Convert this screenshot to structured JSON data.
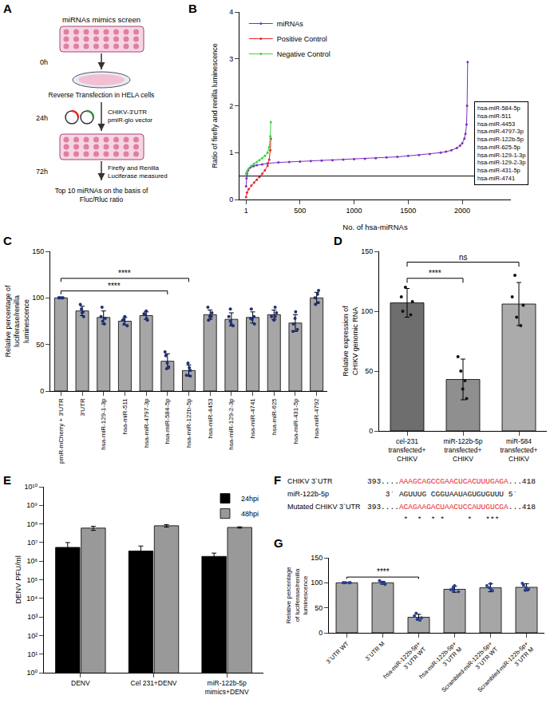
{
  "diagram": {
    "panel": "A",
    "title": "miRNAs mimics screen",
    "steps": [
      {
        "time": "0h",
        "label": "Reverse Transfection in HELA cells"
      },
      {
        "time": "24h",
        "label": "CHIKV-3'UTR pmiR-glo vector"
      },
      {
        "time": "72h",
        "label": "Firefly and Renilla Luciferase measured"
      }
    ],
    "result": "Top 10 miRNAs on the basis of Fluc/Rluc ratio"
  },
  "chart_data": [
    {
      "panel": "B",
      "type": "scatter",
      "x_label": "No. of hsa-miRNAs",
      "y_label": "Ratio of firefly and renilla luminescence",
      "series": [
        {
          "name": "miRNAs",
          "color": "#7b2fbf",
          "x": [
            1,
            5,
            10,
            20,
            40,
            70,
            100,
            150,
            200,
            300,
            400,
            500,
            600,
            700,
            800,
            900,
            1000,
            1100,
            1200,
            1300,
            1400,
            1500,
            1600,
            1700,
            1800,
            1850,
            1900,
            1950,
            1980,
            2000,
            2020,
            2030,
            2040,
            2045,
            2050
          ],
          "values": [
            0.28,
            0.45,
            0.55,
            0.62,
            0.68,
            0.71,
            0.73,
            0.75,
            0.77,
            0.79,
            0.8,
            0.81,
            0.82,
            0.83,
            0.84,
            0.85,
            0.86,
            0.87,
            0.88,
            0.9,
            0.91,
            0.93,
            0.95,
            0.97,
            1.0,
            1.02,
            1.05,
            1.1,
            1.15,
            1.2,
            1.3,
            1.4,
            1.6,
            2.0,
            2.93
          ]
        },
        {
          "name": "Positive Control",
          "color": "#e8242a",
          "x": [
            1,
            10,
            25,
            50,
            75,
            100,
            125,
            150,
            175,
            200,
            215,
            225,
            230
          ],
          "values": [
            0.05,
            0.15,
            0.22,
            0.3,
            0.36,
            0.42,
            0.48,
            0.55,
            0.62,
            0.72,
            0.85,
            1.05,
            1.3
          ]
        },
        {
          "name": "Negative Control",
          "color": "#3fd13f",
          "x": [
            1,
            10,
            25,
            50,
            75,
            100,
            125,
            150,
            175,
            200,
            215,
            225,
            230
          ],
          "values": [
            0.55,
            0.6,
            0.66,
            0.72,
            0.76,
            0.8,
            0.84,
            0.88,
            0.93,
            1.0,
            1.12,
            1.35,
            1.65
          ]
        }
      ],
      "xlim": [
        -60,
        2450
      ],
      "xticks": [
        1,
        500,
        1000,
        1500,
        2000
      ],
      "ylim": [
        0,
        4
      ],
      "yticks": [
        0,
        1,
        2,
        3,
        4
      ],
      "legend": "top left",
      "marker": "circle",
      "grid": false,
      "hline": 0.5,
      "box_labels": [
        "hsa-miR-584-5p",
        "hsa-miR-511",
        "hsa-miR-4453",
        "hsa-miR-4797-3p",
        "hsa-miR-122b-5p",
        "hsa-miR-625-5p",
        "hsa-miR-129-1-3p",
        "hsa-miR-129-2-3p",
        "hsa-miR-431-5p",
        "hsa-miR-4741"
      ]
    },
    {
      "panel": "C",
      "type": "bar",
      "categories": [
        "pmR-mCherry + 3'UTR",
        "3'UTR",
        "hsa-miR-129-1-3p",
        "hsa-miR-511",
        "hsa-miR-4797-3p",
        "hsa-miR-584-5p",
        "hsa-miR-122b-5p",
        "hsa-miR-4453",
        "hsa-miR-129-2-3p",
        "hsa-miR-4741",
        "hsa-miR-625",
        "hsa-miR-431-5p",
        "hsa-miR-4792"
      ],
      "values": [
        100,
        86,
        79,
        75,
        81,
        32,
        22,
        82,
        77,
        79,
        82,
        73,
        100
      ],
      "error": [
        0,
        5,
        7,
        4,
        4,
        8,
        6,
        5,
        7,
        6,
        5,
        9,
        6
      ],
      "points": [
        [
          100,
          100,
          100,
          100,
          100
        ],
        [
          93,
          88,
          84,
          80,
          85
        ],
        [
          90,
          80,
          75,
          72,
          78
        ],
        [
          80,
          76,
          72,
          70,
          77
        ],
        [
          86,
          83,
          78,
          76,
          82
        ],
        [
          42,
          38,
          30,
          26,
          24
        ],
        [
          30,
          25,
          22,
          17,
          16
        ],
        [
          90,
          84,
          80,
          76,
          80
        ],
        [
          88,
          80,
          75,
          70,
          72
        ],
        [
          88,
          80,
          77,
          72,
          78
        ],
        [
          90,
          84,
          80,
          76,
          80
        ],
        [
          85,
          78,
          72,
          66,
          64
        ],
        [
          108,
          104,
          100,
          95,
          93
        ]
      ],
      "color": "#a6a6a6",
      "point_color": "#1c2f7a",
      "y_label": "Relative percentage of luciferase/renilla luminescence",
      "ylim": [
        0,
        150
      ],
      "yticks": [
        0,
        50,
        100,
        150
      ],
      "grid": false,
      "significance": [
        {
          "from": "pmR-mCherry + 3'UTR",
          "to": "hsa-miR-584-5p",
          "label": "****"
        },
        {
          "from": "pmR-mCherry + 3'UTR",
          "to": "hsa-miR-122b-5p",
          "label": "****"
        }
      ]
    },
    {
      "panel": "D",
      "type": "bar",
      "categories": [
        "cel-231 transfected+ CHIKV",
        "miR-122b-5p transfected+ CHIKV",
        "miR-584 transfected+ CHIKV"
      ],
      "values": [
        107,
        43,
        106
      ],
      "error": [
        12,
        17,
        18
      ],
      "points": [
        [
          120,
          112,
          108,
          100,
          97
        ],
        [
          62,
          50,
          42,
          35,
          27
        ],
        [
          130,
          112,
          105,
          95,
          88
        ]
      ],
      "colors": [
        "#6e6e6e",
        "#8f8f8f",
        "#ababab"
      ],
      "point_color": "#111111",
      "y_label": "Relative expression of CHIKV genomic RNA",
      "ylim": [
        0,
        150
      ],
      "yticks": [
        0,
        50,
        100,
        150
      ],
      "grid": false,
      "significance": [
        {
          "from": "cel-231 transfected+ CHIKV",
          "to": "miR-122b-5p transfected+ CHIKV",
          "label": "****"
        },
        {
          "from": "cel-231 transfected+ CHIKV",
          "to": "miR-584 transfected+ CHIKV",
          "label": "ns"
        }
      ]
    },
    {
      "panel": "E",
      "type": "bar",
      "categories": [
        "DENV",
        "Cel 231+DENV",
        "miR-122b-5p mimics+DENV"
      ],
      "series": [
        {
          "name": "24hpi",
          "color": "#000000",
          "values": [
            5500000,
            3500000,
            1800000
          ],
          "error": [
            4500000,
            3000000,
            900000
          ]
        },
        {
          "name": "48hpi",
          "color": "#999999",
          "values": [
            60000000,
            80000000,
            65000000
          ],
          "error": [
            15000000,
            12000000,
            5000000
          ]
        }
      ],
      "y_label": "DENV PFU/ml",
      "log": "y",
      "ylim": [
        1,
        10000000000.0
      ],
      "yticks": [
        {
          "value": 1,
          "label": "10⁰"
        },
        {
          "value": 10,
          "label": "10¹"
        },
        {
          "value": 100,
          "label": "10²"
        },
        {
          "value": 1000,
          "label": "10³"
        },
        {
          "value": 10000,
          "label": "10⁴"
        },
        {
          "value": 100000,
          "label": "10⁵"
        },
        {
          "value": 1000000,
          "label": "10⁶"
        },
        {
          "value": 10000000,
          "label": "10⁷"
        },
        {
          "value": 100000000,
          "label": "10⁸"
        },
        {
          "value": 1000000000,
          "label": "10⁹"
        },
        {
          "value": 10000000000.0,
          "label": "10¹⁰"
        }
      ],
      "legend": "top right",
      "grid": false
    },
    {
      "panel": "G",
      "type": "bar",
      "categories": [
        "3`UTR WT",
        "3`UTR M",
        "hsa-miR-122b-5p+3`UTR WT",
        "hsa-miR-122b-5p+3`UTR M",
        "Scrambled-miR-122b-5p+3`UTR WT",
        "Scrambled-miR-122b-5p+3`UTR M"
      ],
      "values": [
        100,
        100,
        31,
        87,
        90,
        91
      ],
      "error": [
        0,
        3,
        6,
        6,
        8,
        7
      ],
      "points": [
        [
          100,
          100,
          100,
          100,
          100
        ],
        [
          104,
          101,
          100,
          99,
          97
        ],
        [
          39,
          34,
          30,
          27,
          25
        ],
        [
          94,
          90,
          86,
          84,
          82
        ],
        [
          98,
          94,
          90,
          86,
          84
        ],
        [
          99,
          95,
          90,
          87,
          85
        ]
      ],
      "color": "#a6a6a6",
      "point_color": "#2a3f8f",
      "y_label": "Relative percentage of luciferase/renilla luminescence",
      "ylim": [
        0,
        150
      ],
      "yticks": [
        0,
        50,
        100,
        150
      ],
      "grid": false,
      "significance": [
        {
          "from": "3`UTR WT",
          "to": "hsa-miR-122b-5p+3`UTR WT",
          "label": "****"
        }
      ]
    }
  ],
  "alignment": {
    "panel": "F",
    "rows": [
      {
        "label": "CHIKV 3`UTR",
        "start": "393....",
        "sequence": "AAAGCAGCCGAACUCACUUUGAGA",
        "end": "...418",
        "color": "#e8242a"
      },
      {
        "label": "miR-122b-5p",
        "sequence": "3` AGUUUG CGGUAAUAGUGUGUUU 5`"
      },
      {
        "label": "Mutated CHIKV 3`UTR",
        "start": "393....",
        "sequence": "ACAGAAGACUAACUCCAUUGUCGA",
        "end": "...418",
        "color": "#e8242a"
      }
    ],
    "mutation_marks": " *  *  * *     *   ***"
  }
}
